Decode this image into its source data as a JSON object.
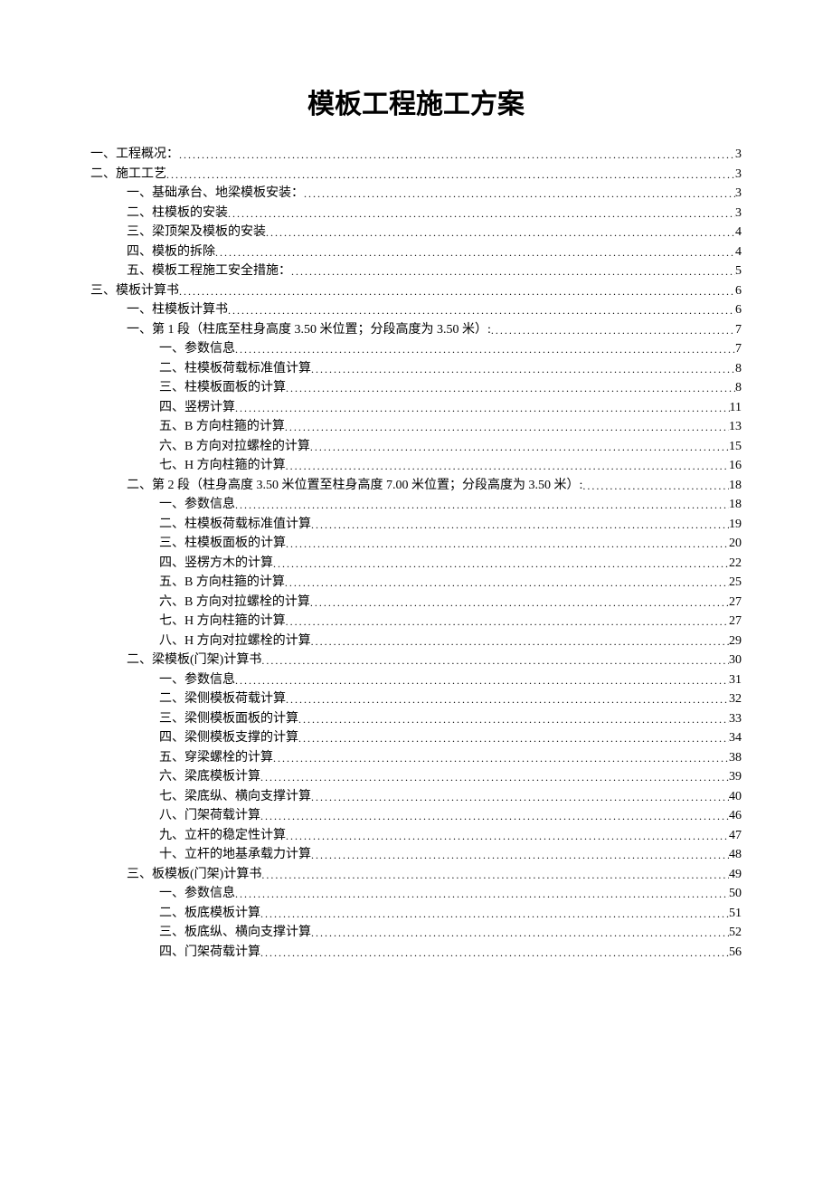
{
  "title": "模板工程施工方案",
  "toc": [
    {
      "label": "一、工程概况：",
      "page": 3,
      "indent": 0
    },
    {
      "label": "二、施工工艺",
      "page": 3,
      "indent": 0
    },
    {
      "label": "一、基础承台、地梁模板安装：",
      "page": 3,
      "indent": 1
    },
    {
      "label": "二、柱模板的安装",
      "page": 3,
      "indent": 1
    },
    {
      "label": "三、梁顶架及模板的安装",
      "page": 4,
      "indent": 1
    },
    {
      "label": "四、模板的拆除",
      "page": 4,
      "indent": 1
    },
    {
      "label": "五、模板工程施工安全措施：",
      "page": 5,
      "indent": 1
    },
    {
      "label": "三、模板计算书",
      "page": 6,
      "indent": 0
    },
    {
      "label": "一、柱模板计算书",
      "page": 6,
      "indent": 1
    },
    {
      "label": "一、第 1 段（柱底至柱身高度 3.50 米位置；分段高度为 3.50 米）:",
      "page": 7,
      "indent": 1
    },
    {
      "label": "一、参数信息",
      "page": 7,
      "indent": 2
    },
    {
      "label": "二、柱模板荷载标准值计算",
      "page": 8,
      "indent": 2
    },
    {
      "label": "三、柱模板面板的计算",
      "page": 8,
      "indent": 2
    },
    {
      "label": "四、竖楞计算",
      "page": 11,
      "indent": 2
    },
    {
      "label": "五、B 方向柱箍的计算",
      "page": 13,
      "indent": 2
    },
    {
      "label": "六、B 方向对拉螺栓的计算",
      "page": 15,
      "indent": 2
    },
    {
      "label": "七、H 方向柱箍的计算",
      "page": 16,
      "indent": 2
    },
    {
      "label": "二、第 2 段（柱身高度 3.50 米位置至柱身高度 7.00 米位置；分段高度为 3.50 米）:",
      "page": 18,
      "indent": 1
    },
    {
      "label": "一、参数信息",
      "page": 18,
      "indent": 2
    },
    {
      "label": "二、柱模板荷载标准值计算",
      "page": 19,
      "indent": 2
    },
    {
      "label": "三、柱模板面板的计算",
      "page": 20,
      "indent": 2
    },
    {
      "label": "四、竖楞方木的计算",
      "page": 22,
      "indent": 2
    },
    {
      "label": "五、B 方向柱箍的计算",
      "page": 25,
      "indent": 2
    },
    {
      "label": "六、B 方向对拉螺栓的计算",
      "page": 27,
      "indent": 2
    },
    {
      "label": "七、H 方向柱箍的计算",
      "page": 27,
      "indent": 2
    },
    {
      "label": "八、H 方向对拉螺栓的计算",
      "page": 29,
      "indent": 2
    },
    {
      "label": "二、梁模板(门架)计算书",
      "page": 30,
      "indent": 1
    },
    {
      "label": "一、参数信息",
      "page": 31,
      "indent": 2
    },
    {
      "label": "二、梁侧模板荷载计算",
      "page": 32,
      "indent": 2
    },
    {
      "label": "三、梁侧模板面板的计算",
      "page": 33,
      "indent": 2
    },
    {
      "label": "四、梁侧模板支撑的计算",
      "page": 34,
      "indent": 2
    },
    {
      "label": "五、穿梁螺栓的计算",
      "page": 38,
      "indent": 2
    },
    {
      "label": "六、梁底模板计算",
      "page": 39,
      "indent": 2
    },
    {
      "label": "七、梁底纵、横向支撑计算",
      "page": 40,
      "indent": 2
    },
    {
      "label": "八、门架荷载计算",
      "page": 46,
      "indent": 2
    },
    {
      "label": "九、立杆的稳定性计算",
      "page": 47,
      "indent": 2
    },
    {
      "label": "十、立杆的地基承载力计算",
      "page": 48,
      "indent": 2
    },
    {
      "label": "三、板模板(门架)计算书",
      "page": 49,
      "indent": 1
    },
    {
      "label": "一、参数信息",
      "page": 50,
      "indent": 2
    },
    {
      "label": "二、板底模板计算",
      "page": 51,
      "indent": 2
    },
    {
      "label": "三、板底纵、横向支撑计算",
      "page": 52,
      "indent": 2
    },
    {
      "label": "四、门架荷载计算",
      "page": 56,
      "indent": 2
    }
  ]
}
